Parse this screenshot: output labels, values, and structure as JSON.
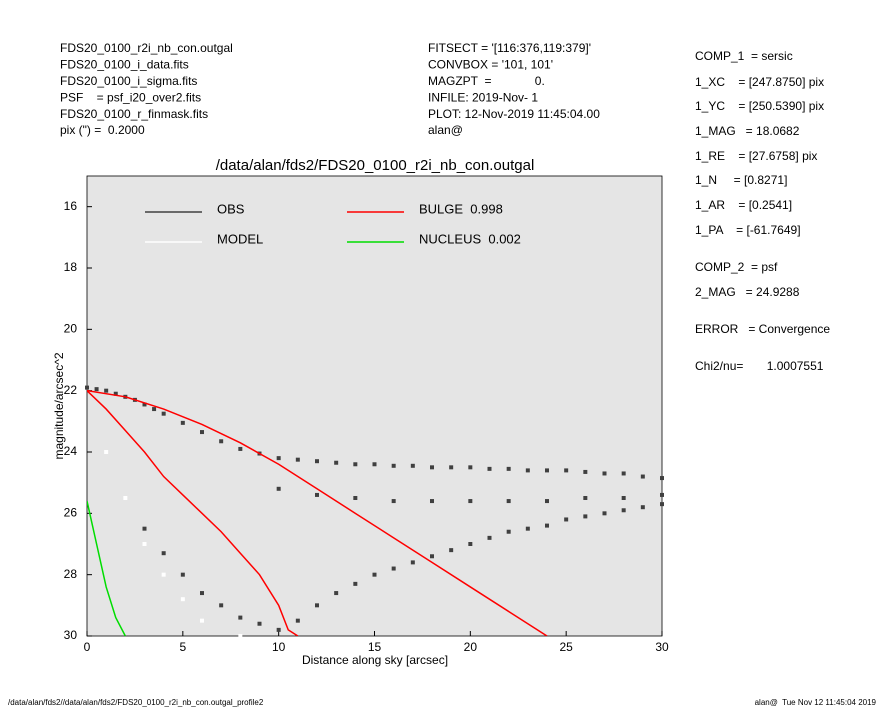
{
  "header": {
    "left": [
      "FDS20_0100_r2i_nb_con.outgal",
      "FDS20_0100_i_data.fits",
      "FDS20_0100_i_sigma.fits",
      "PSF    = psf_i20_over2.fits",
      "FDS20_0100_r_finmask.fits",
      "pix (\") =  0.2000"
    ],
    "middle": [
      "FITSECT = '[116:376,119:379]'",
      "CONVBOX = '101, 101'",
      "MAGZPT  =             0.",
      "INFILE: 2019-Nov- 1",
      "PLOT: 12-Nov-2019 11:45:04.00",
      "alan@"
    ]
  },
  "info_panel": [
    "COMP_1  = sersic",
    "1_XC    = [247.8750] pix",
    "1_YC    = [250.5390] pix",
    "1_MAG   = 18.0682",
    "1_RE    = [27.6758] pix",
    "1_N     = [0.8271]",
    "1_AR    = [0.2541]",
    "1_PA    = [-61.7649]",
    "COMP_2  = psf",
    "2_MAG   = 24.9288",
    "ERROR   = Convergence",
    "Chi2/nu=       1.0007551"
  ],
  "footer": {
    "left": "/data/alan/fds2//data/alan/fds2/FDS20_0100_r2i_nb_con.outgal_profile2",
    "right": "alan@  Tue Nov 12 11:45:04 2019"
  },
  "chart_data": {
    "type": "scatter",
    "title": "/data/alan/fds2/FDS20_0100_r2i_nb_con.outgal",
    "x_label": "Distance along sky [arcsec]",
    "y_label": "magnitude/arcsec^2",
    "xlim": [
      0,
      30
    ],
    "xticks": [
      0,
      5,
      10,
      15,
      20,
      25,
      30
    ],
    "ylim": [
      30,
      15
    ],
    "yticks": [
      16,
      18,
      20,
      22,
      24,
      26,
      28,
      30
    ],
    "background": "#e5e5e5",
    "series": [
      {
        "name": "OBS",
        "color": "#404040",
        "label_color": "#8c8c8c",
        "mode": "points",
        "x": [
          0,
          0.5,
          1,
          1.5,
          2,
          2.5,
          3,
          3.5,
          4,
          5,
          6,
          7,
          8,
          9,
          10,
          11,
          12,
          13,
          14,
          15,
          16,
          17,
          18,
          19,
          20,
          21,
          22,
          23,
          24,
          25,
          26,
          27,
          28,
          29,
          30,
          3,
          4,
          5,
          6,
          7,
          8,
          9,
          10,
          11,
          12,
          13,
          14,
          15,
          16,
          17,
          18,
          19,
          20,
          21,
          22,
          23,
          24,
          25,
          26,
          27,
          28,
          29,
          30,
          10,
          12,
          14,
          16,
          18,
          20,
          22,
          24,
          26,
          28,
          30
        ],
        "values": [
          21.9,
          21.95,
          22.0,
          22.1,
          22.2,
          22.3,
          22.45,
          22.6,
          22.75,
          23.05,
          23.35,
          23.65,
          23.9,
          24.05,
          24.2,
          24.25,
          24.3,
          24.35,
          24.4,
          24.4,
          24.45,
          24.45,
          24.5,
          24.5,
          24.5,
          24.55,
          24.55,
          24.6,
          24.6,
          24.6,
          24.65,
          24.7,
          24.7,
          24.8,
          24.85,
          26.5,
          27.3,
          28.0,
          28.6,
          29.0,
          29.4,
          29.6,
          29.8,
          29.5,
          29.0,
          28.6,
          28.3,
          28.0,
          27.8,
          27.6,
          27.4,
          27.2,
          27.0,
          26.8,
          26.6,
          26.5,
          26.4,
          26.2,
          26.1,
          26.0,
          25.9,
          25.8,
          25.7,
          25.2,
          25.4,
          25.5,
          25.6,
          25.6,
          25.6,
          25.6,
          25.6,
          25.5,
          25.5,
          25.4
        ]
      },
      {
        "name": "MODEL",
        "color": "#ffffff",
        "label_color": "#ffffff",
        "mode": "points",
        "x": [
          1,
          2,
          3,
          4,
          5,
          6,
          8
        ],
        "values": [
          24,
          25.5,
          27,
          28,
          28.8,
          29.5,
          30
        ]
      },
      {
        "name": "BULGE  0.998",
        "color": "#ff0000",
        "label_color": "#ff0000",
        "mode": "line",
        "x": [
          0,
          2,
          4,
          6,
          8,
          10,
          12,
          14,
          16,
          18,
          20,
          22,
          24
        ],
        "values": [
          22.0,
          22.2,
          22.6,
          23.1,
          23.7,
          24.4,
          25.2,
          26.0,
          26.8,
          27.6,
          28.4,
          29.2,
          30.0
        ],
        "x_low": [
          0,
          1,
          2,
          3,
          4,
          5,
          6,
          7,
          8,
          9,
          10,
          10.5,
          11
        ],
        "values_low": [
          22.0,
          22.6,
          23.3,
          24.0,
          24.8,
          25.4,
          26.0,
          26.6,
          27.3,
          28.0,
          29.0,
          29.8,
          30.0
        ]
      },
      {
        "name": "NUCLEUS  0.002",
        "color": "#00dd00",
        "label_color": "#00dd00",
        "mode": "line",
        "x": [
          0,
          0.5,
          1,
          1.5,
          2
        ],
        "values": [
          25.6,
          27.0,
          28.4,
          29.4,
          30.0
        ]
      }
    ]
  }
}
